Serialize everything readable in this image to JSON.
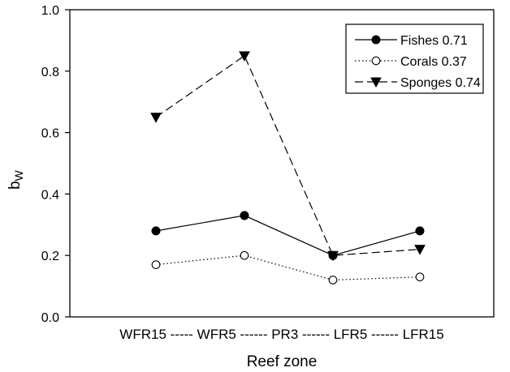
{
  "chart_data": {
    "type": "line",
    "xlabel": "Reef zone",
    "ylabel_main": "b",
    "ylabel_sub": "W",
    "ylim": [
      0.0,
      1.0
    ],
    "yticks": [
      0.0,
      0.2,
      0.4,
      0.6,
      0.8,
      1.0
    ],
    "ytick_labels": [
      "0.0",
      "0.2",
      "0.4",
      "0.6",
      "0.8",
      "1.0"
    ],
    "categories": [
      "WFR15",
      "WFR5",
      "PR3",
      "LFR5",
      "LFR15"
    ],
    "xtick_label": "WFR15 ----- WFR5 ------ PR3 ------ LFR5 ------ LFR15",
    "legend_position": "top-right",
    "grid": false,
    "series": [
      {
        "name": "Fishes 0.71",
        "marker": "filled-circle",
        "line_style": "solid",
        "points": [
          {
            "x": "WFR15",
            "y": 0.28
          },
          {
            "x": "WFR5",
            "y": 0.33
          },
          {
            "x": "LFR5",
            "y": 0.2
          },
          {
            "x": "LFR15",
            "y": 0.28
          }
        ]
      },
      {
        "name": "Corals 0.37",
        "marker": "open-circle",
        "line_style": "dotted",
        "points": [
          {
            "x": "WFR15",
            "y": 0.17
          },
          {
            "x": "WFR5",
            "y": 0.2
          },
          {
            "x": "LFR5",
            "y": 0.12
          },
          {
            "x": "LFR15",
            "y": 0.13
          }
        ]
      },
      {
        "name": "Sponges 0.74",
        "marker": "filled-triangle-down",
        "line_style": "dashed",
        "points": [
          {
            "x": "WFR15",
            "y": 0.65
          },
          {
            "x": "WFR5",
            "y": 0.85
          },
          {
            "x": "LFR5",
            "y": 0.2
          },
          {
            "x": "LFR15",
            "y": 0.22
          }
        ]
      }
    ]
  }
}
